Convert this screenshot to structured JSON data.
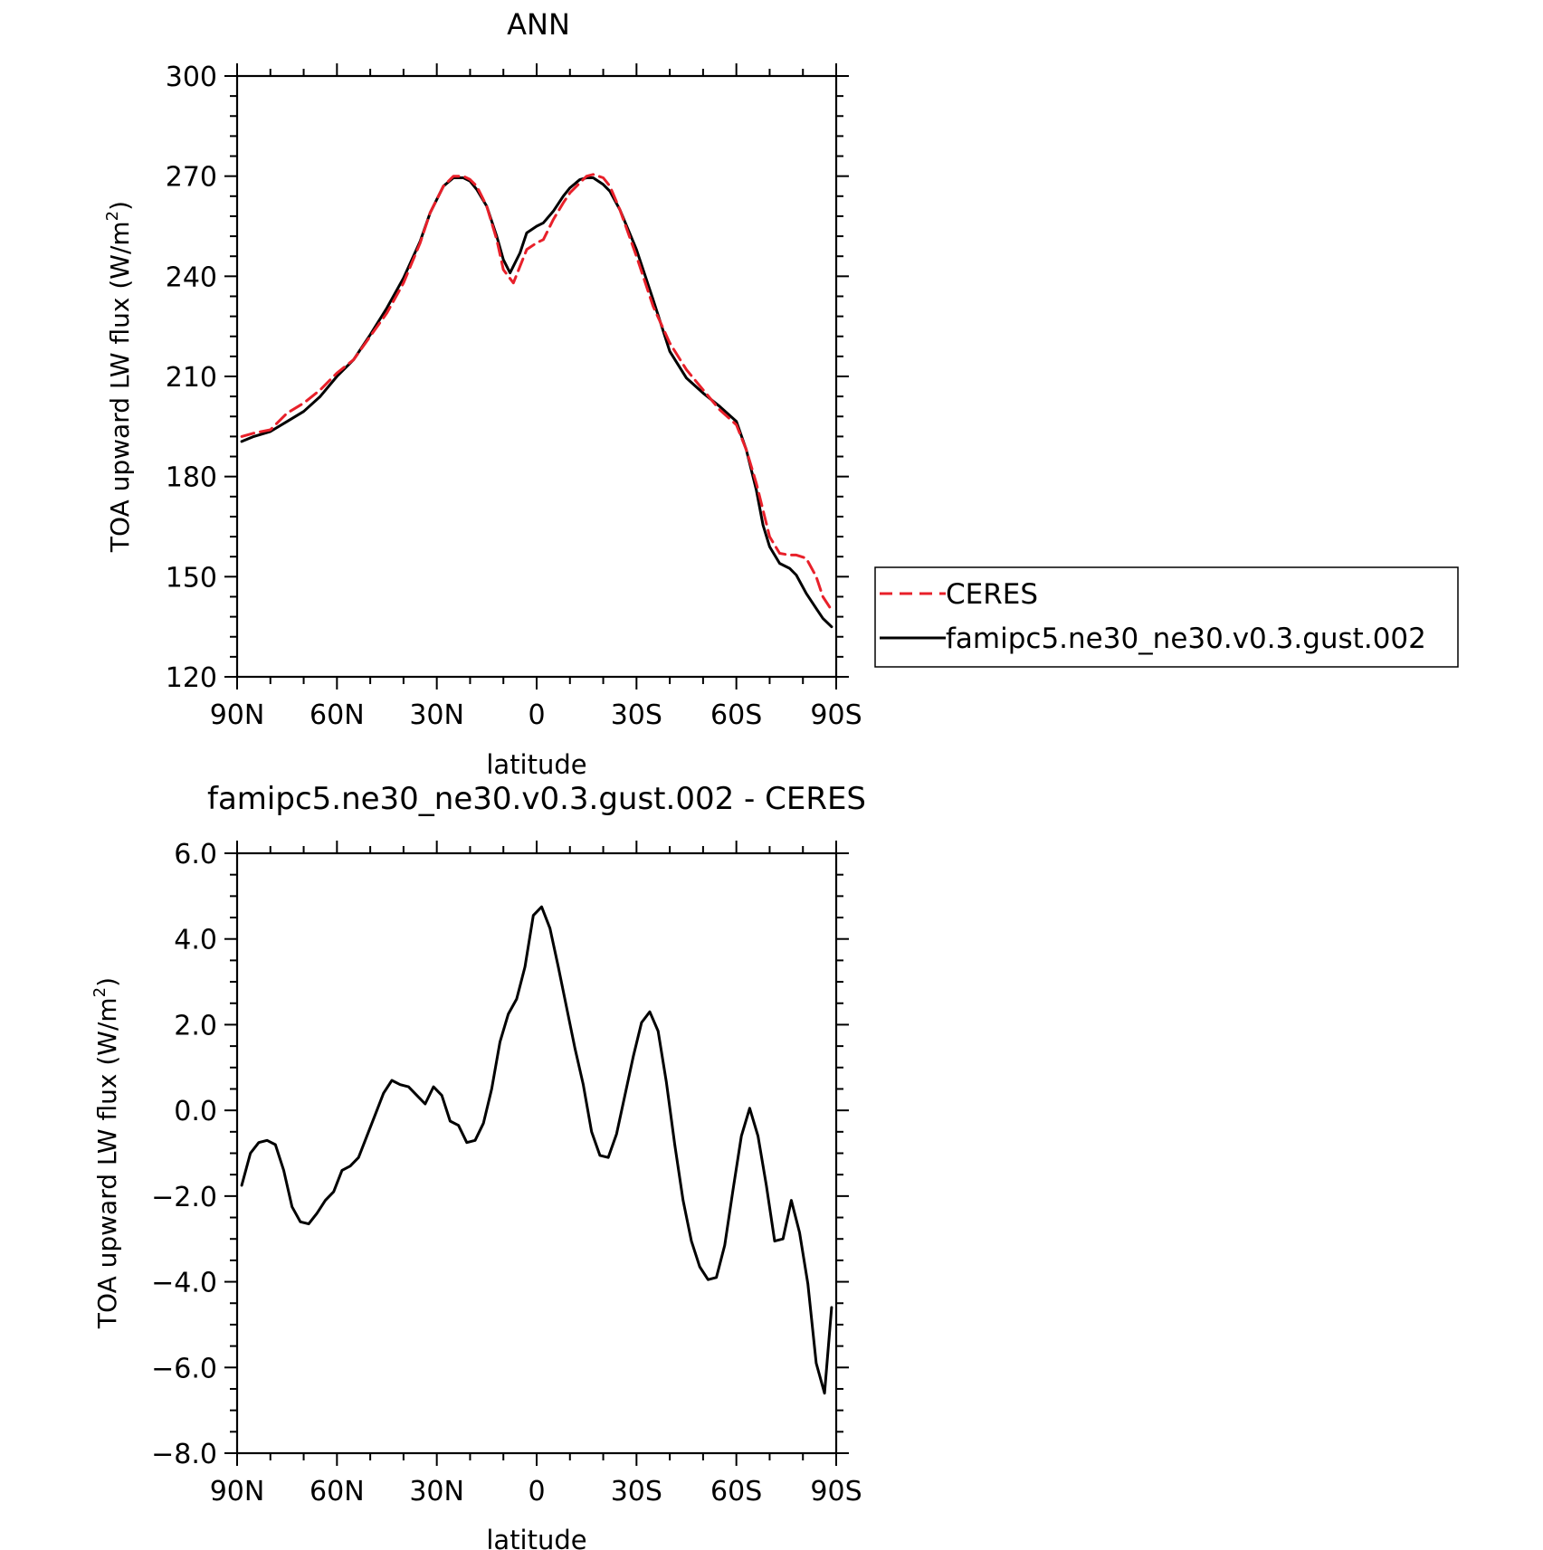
{
  "chart_data": [
    {
      "type": "line",
      "title": "ANN",
      "xlabel": "latitude",
      "ylabel": "TOA upward LW flux (W/m",
      "ylabel_sup": "2",
      "ylabel_close": ")",
      "xlim": [
        90,
        -90
      ],
      "ylim": [
        120,
        300
      ],
      "x_ticks": [
        {
          "value": 90,
          "label": "90N"
        },
        {
          "value": 60,
          "label": "60N"
        },
        {
          "value": 30,
          "label": "30N"
        },
        {
          "value": 0,
          "label": "0"
        },
        {
          "value": -30,
          "label": "30S"
        },
        {
          "value": -60,
          "label": "60S"
        },
        {
          "value": -90,
          "label": "90S"
        }
      ],
      "y_ticks": [
        {
          "value": 120,
          "label": "120"
        },
        {
          "value": 150,
          "label": "150"
        },
        {
          "value": 180,
          "label": "180"
        },
        {
          "value": 210,
          "label": "210"
        },
        {
          "value": 240,
          "label": "240"
        },
        {
          "value": 270,
          "label": "270"
        },
        {
          "value": 300,
          "label": "300"
        }
      ],
      "legend": {
        "placement": "right",
        "entries": [
          {
            "label": "CERES",
            "color": "#e8202a",
            "style": "dashed"
          },
          {
            "label": "famipc5.ne30_ne30.v0.3.gust.002",
            "color": "#000000",
            "style": "solid"
          }
        ]
      },
      "series": [
        {
          "name": "CERES",
          "color": "#e8202a",
          "style": "dashed",
          "x": [
            88.6,
            85,
            80,
            75,
            70,
            65,
            60,
            55,
            50,
            45,
            40,
            35,
            32,
            28,
            25,
            22,
            20,
            18,
            15,
            12,
            10,
            7,
            5,
            3,
            0,
            -2,
            -5,
            -8,
            -10,
            -13,
            -15,
            -17,
            -20,
            -22,
            -25,
            -30,
            -35,
            -40,
            -45,
            -50,
            -55,
            -60,
            -63,
            -66,
            -68,
            -70,
            -73,
            -76,
            -78,
            -81,
            -84,
            -86,
            -88.6
          ],
          "y": [
            192,
            193,
            194,
            199,
            202,
            206,
            211,
            215,
            222,
            229,
            238,
            250,
            259,
            267,
            270,
            270,
            269,
            267,
            261,
            251,
            242,
            238,
            243,
            248,
            250,
            251,
            257,
            262,
            265,
            268,
            270,
            270.5,
            269.5,
            267,
            260,
            246,
            231,
            220,
            212,
            206,
            200,
            195.5,
            188,
            178,
            170,
            162,
            157,
            156.5,
            156.5,
            155.5,
            150,
            144,
            140
          ]
        },
        {
          "name": "famipc5.ne30_ne30.v0.3.gust.002",
          "color": "#000000",
          "style": "solid",
          "x": [
            88.6,
            85,
            80,
            75,
            70,
            65,
            60,
            55,
            50,
            45,
            40,
            35,
            32,
            28,
            25,
            22,
            20,
            18,
            15,
            12,
            10,
            8,
            5,
            3,
            0,
            -2,
            -5,
            -8,
            -10,
            -13,
            -15,
            -17,
            -20,
            -22,
            -25,
            -30,
            -35,
            -40,
            -45,
            -50,
            -55,
            -60,
            -63,
            -66,
            -68,
            -70,
            -73,
            -76,
            -78,
            -81,
            -84,
            -86,
            -88.6
          ],
          "y": [
            190.5,
            192,
            193.5,
            196.5,
            199.5,
            204,
            210,
            215,
            222.5,
            230.5,
            239.5,
            250.5,
            259,
            267,
            269.5,
            269.5,
            268.5,
            266,
            261,
            252,
            245,
            241,
            247,
            253,
            255,
            256,
            259.5,
            264,
            266.5,
            269,
            269.5,
            269.5,
            267.5,
            265.5,
            260,
            248,
            233,
            217.5,
            209.5,
            205,
            201,
            196.5,
            188,
            176,
            165.5,
            159,
            154,
            152.5,
            150.5,
            145,
            140.5,
            137.5,
            135
          ]
        }
      ]
    },
    {
      "type": "line",
      "title": "famipc5.ne30_ne30.v0.3.gust.002 - CERES",
      "xlabel": "latitude",
      "ylabel": "TOA upward LW flux (W/m",
      "ylabel_sup": "2",
      "ylabel_close": ")",
      "xlim": [
        90,
        -90
      ],
      "ylim": [
        -8.0,
        6.0
      ],
      "x_ticks": [
        {
          "value": 90,
          "label": "90N"
        },
        {
          "value": 60,
          "label": "60N"
        },
        {
          "value": 30,
          "label": "30N"
        },
        {
          "value": 0,
          "label": "0"
        },
        {
          "value": -30,
          "label": "30S"
        },
        {
          "value": -60,
          "label": "60S"
        },
        {
          "value": -90,
          "label": "90S"
        }
      ],
      "y_ticks": [
        {
          "value": -8,
          "label": "−8.0"
        },
        {
          "value": -6,
          "label": "−6.0"
        },
        {
          "value": -4,
          "label": "−4.0"
        },
        {
          "value": -2,
          "label": "−2.0"
        },
        {
          "value": 0,
          "label": "0.0"
        },
        {
          "value": 2,
          "label": "2.0"
        },
        {
          "value": 4,
          "label": "4.0"
        },
        {
          "value": 6,
          "label": "6.0"
        }
      ],
      "series": [
        {
          "name": "famipc5.ne30_ne30.v0.3.gust.002 - CERES",
          "color": "#000000",
          "style": "solid",
          "x": [
            88.6,
            86,
            83.5,
            81,
            78.5,
            76,
            73.5,
            71,
            68.5,
            66,
            63.5,
            61,
            58.5,
            56,
            53.5,
            51,
            48.5,
            46,
            43.5,
            41,
            38.5,
            36,
            33.5,
            31,
            28.5,
            26,
            23.5,
            21,
            18.5,
            16,
            13.5,
            11,
            8.5,
            6,
            3.5,
            1,
            -1.5,
            -4,
            -6.5,
            -9,
            -11.5,
            -14,
            -16.5,
            -19,
            -21.5,
            -24,
            -26.5,
            -29,
            -31.5,
            -34,
            -36.5,
            -39,
            -41.5,
            -44,
            -46.5,
            -49,
            -51.5,
            -54,
            -56.5,
            -59,
            -61.5,
            -64,
            -66.5,
            -69,
            -71.5,
            -74,
            -76.5,
            -79,
            -81.5,
            -84,
            -86.5,
            -88.6
          ],
          "y": [
            -1.75,
            -1.0,
            -0.75,
            -0.7,
            -0.8,
            -1.4,
            -2.25,
            -2.6,
            -2.65,
            -2.4,
            -2.1,
            -1.9,
            -1.4,
            -1.3,
            -1.1,
            -0.6,
            -0.1,
            0.4,
            0.7,
            0.6,
            0.55,
            0.35,
            0.15,
            0.55,
            0.35,
            -0.25,
            -0.35,
            -0.75,
            -0.7,
            -0.3,
            0.5,
            1.6,
            2.25,
            2.6,
            3.35,
            4.55,
            4.75,
            4.25,
            3.35,
            2.4,
            1.45,
            0.6,
            -0.5,
            -1.05,
            -1.1,
            -0.55,
            0.35,
            1.25,
            2.05,
            2.3,
            1.85,
            0.65,
            -0.8,
            -2.1,
            -3.05,
            -3.65,
            -3.95,
            -3.9,
            -3.15,
            -1.85,
            -0.6,
            0.05,
            -0.6,
            -1.75,
            -3.05,
            -3.0,
            -2.1,
            -2.85,
            -4.05,
            -5.9,
            -6.6,
            -4.6
          ]
        }
      ]
    }
  ]
}
